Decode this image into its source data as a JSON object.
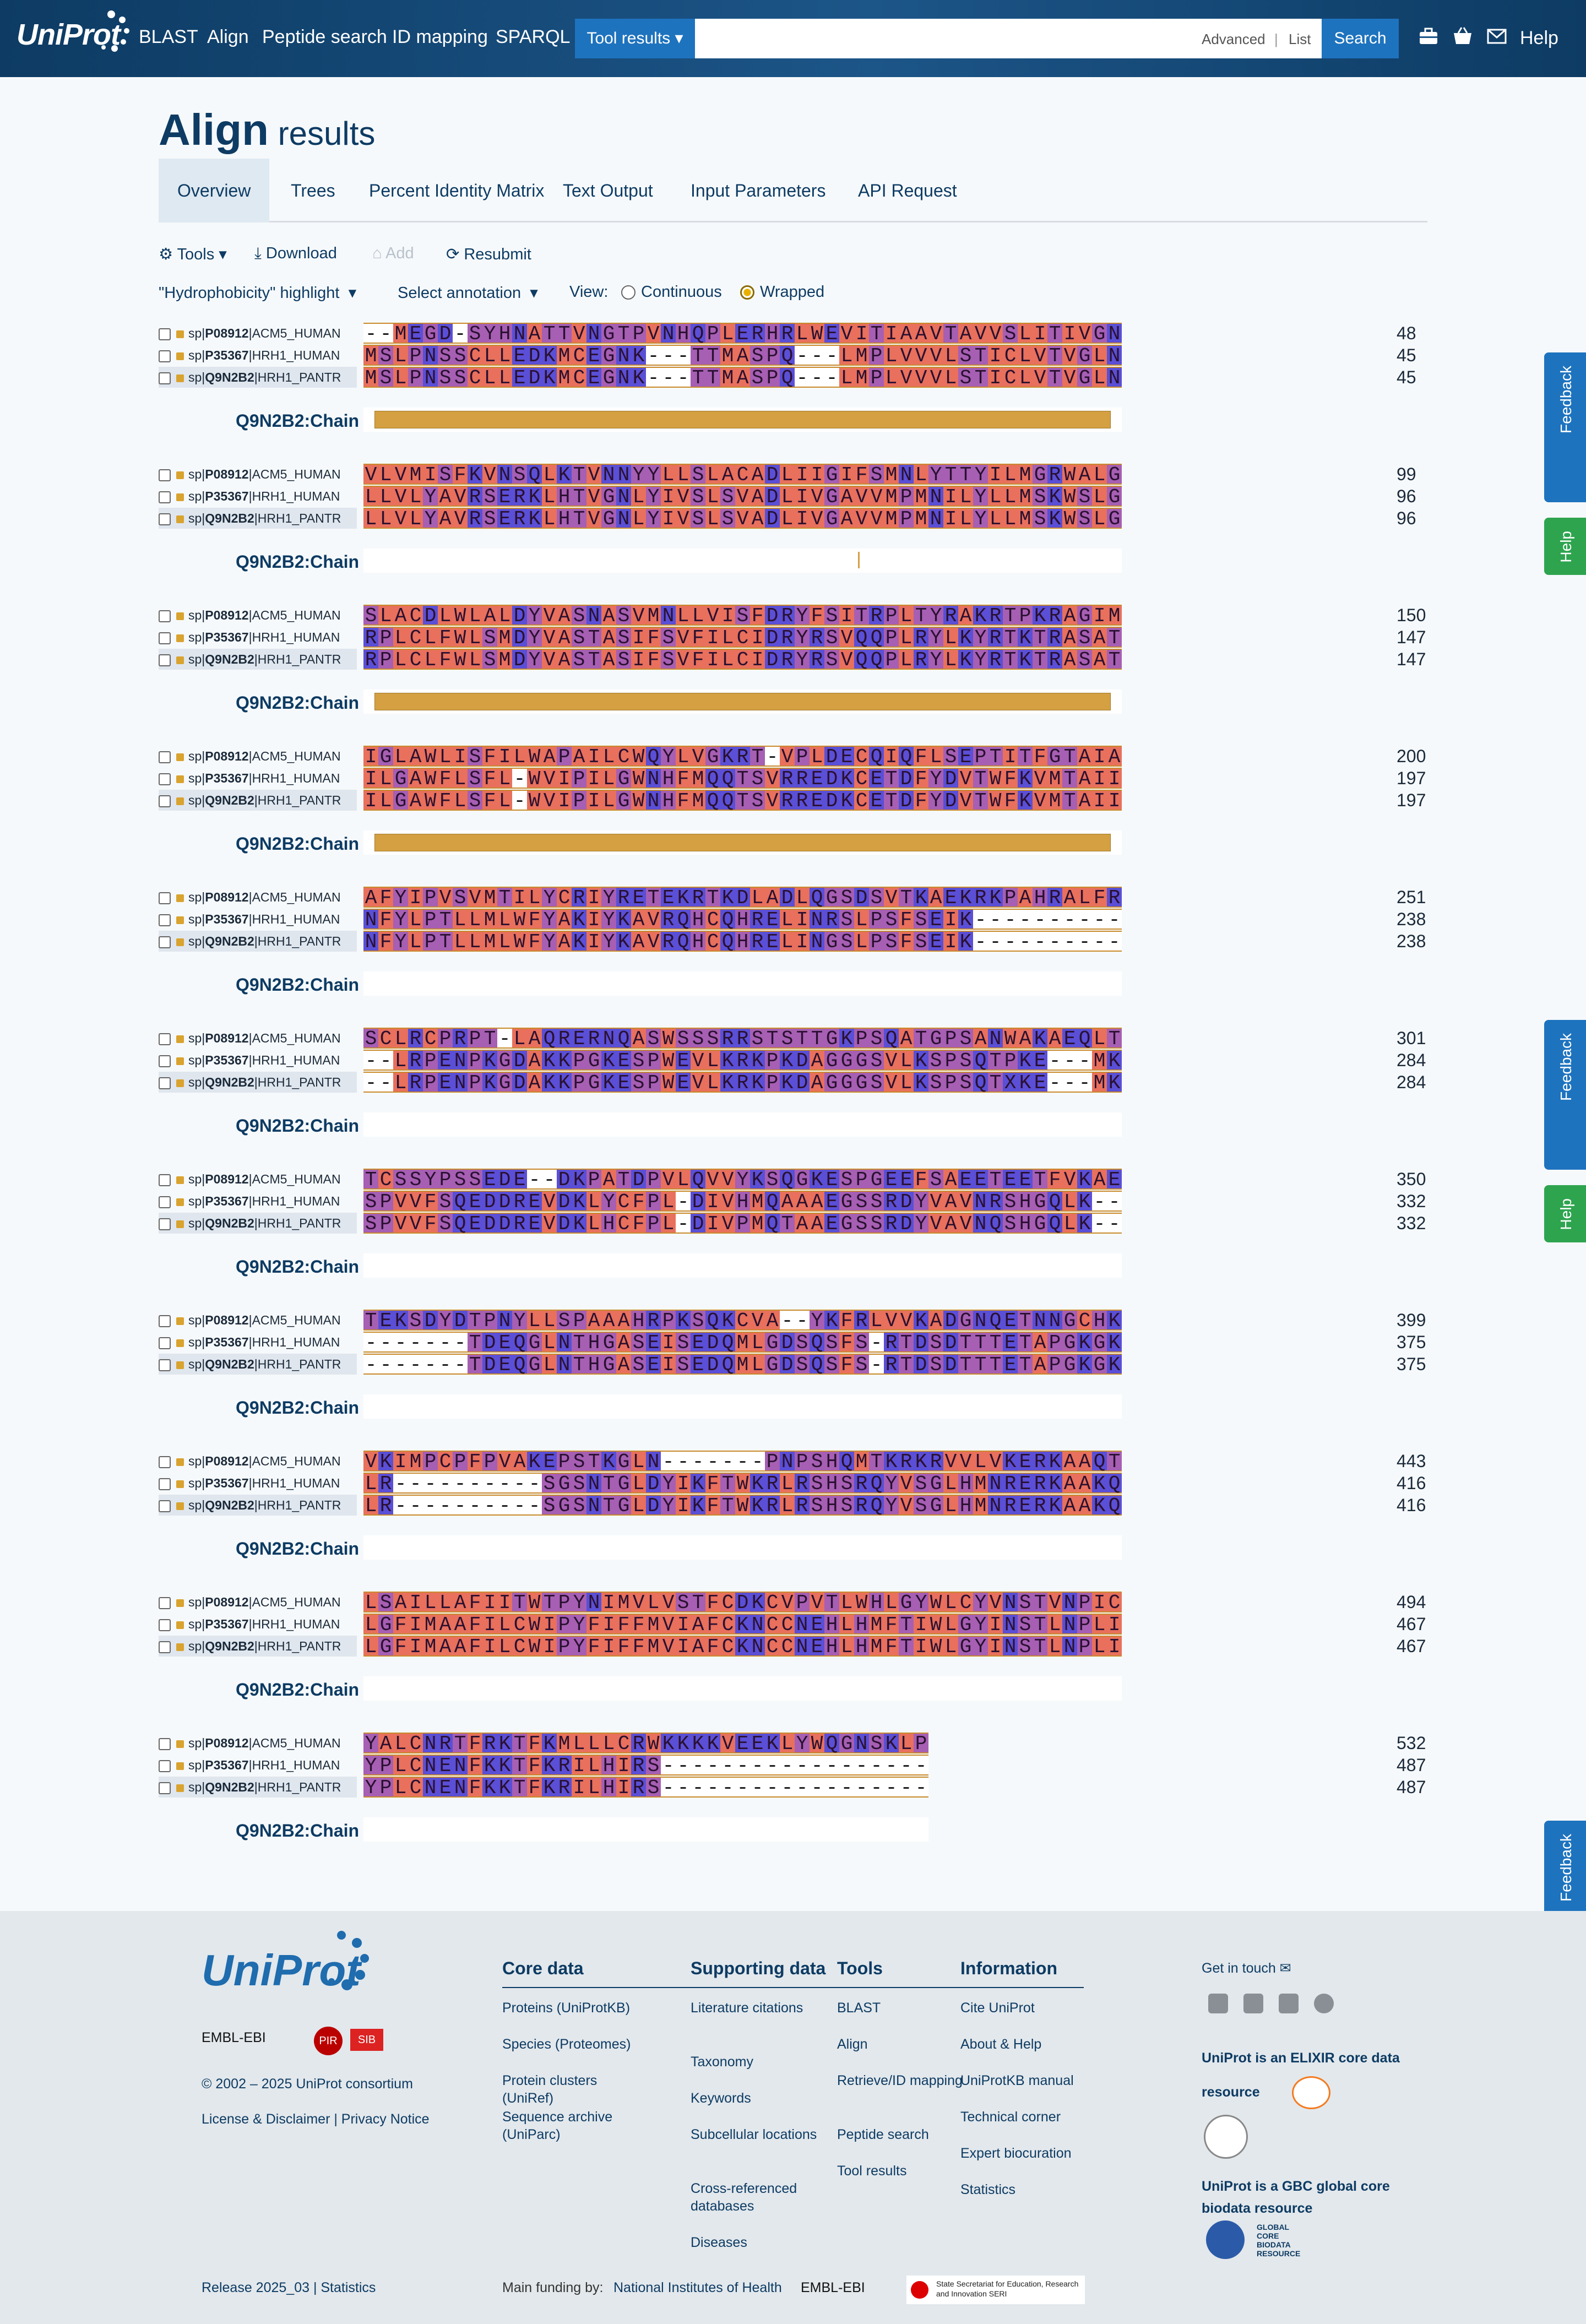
{
  "header": {
    "logo": "UniProt",
    "nav": [
      "BLAST",
      "Align",
      "Peptide search",
      "ID mapping",
      "SPARQL"
    ],
    "tool_results": "Tool results ▾",
    "search_placeholder": "",
    "advanced": "Advanced",
    "list": "List",
    "search": "Search",
    "help": "Help"
  },
  "page": {
    "title_bold": "Align",
    "title_rest": " results"
  },
  "tabs": [
    "Overview",
    "Trees",
    "Percent Identity Matrix",
    "Text Output",
    "Input Parameters",
    "API Request"
  ],
  "actions": {
    "tools": "Tools ▾",
    "download": "Download",
    "add": "Add",
    "resubmit": "Resubmit",
    "highlight": "\"Hydrophobicity\" highlight",
    "select_annotation": "Select annotation",
    "view": "View:",
    "continuous": "Continuous",
    "wrapped": "Wrapped"
  },
  "annotation_label": "Q9N2B2:Chain",
  "entries": [
    {
      "db": "sp|",
      "acc": "P08912",
      "name": "|ACM5_HUMAN"
    },
    {
      "db": "sp|",
      "acc": "P35367",
      "name": "|HRH1_HUMAN"
    },
    {
      "db": "sp|",
      "acc": "Q9N2B2",
      "name": "|HRH1_PANTR"
    }
  ],
  "alignment": [
    {
      "seqs": [
        "--MEGD-SYHNATTVNGTPVNHQPLERHRLWEVITIAAVTAVVSLITIVGN",
        "MSLPNSSCLLEDKMCEGNK---TTMASPQ---LMPLVVVLSTICLVTVGLN",
        "MSLPNSSCLLEDKMCEGNK---TTMASPQ---LMPLVVVLSTICLVTVGLN"
      ],
      "ends": [
        "48",
        "45",
        "45"
      ]
    },
    {
      "seqs": [
        "VLVMISFKVNSQLKTVNNYYLLSLACADLIIGIFSMNLYTTYILMGRWALG",
        "LLVLYAVRSERKLHTVGNLYIVSLSVADLIVGAVVMPMNILYLLMSKWSLG",
        "LLVLYAVRSERKLHTVGNLYIVSLSVADLIVGAVVMPMNILYLLMSKWSLG"
      ],
      "ends": [
        "99",
        "96",
        "96"
      ]
    },
    {
      "seqs": [
        "SLACDLWLALDYVASNASVMNLLVISFDRYFSITRPLTYRAKRTPKRAGIM",
        "RPLCLFWLSMDYVASTASIFSVFILCIDRYRSVQQPLRYLKYRTKTRASAT",
        "RPLCLFWLSMDYVASTASIFSVFILCIDRYRSVQQPLRYLKYRTKTRASAT"
      ],
      "ends": [
        "150",
        "147",
        "147"
      ]
    },
    {
      "seqs": [
        "IGLAWLISFILWAPAILCWQYLVGKRT-VPLDECQIQFLSEPTITFGTAIA",
        "ILGAWFLSFL-WVIPILGWNHFMQQTSVRREDKCETDFYDVTWFKVMTAII",
        "ILGAWFLSFL-WVIPILGWNHFMQQTSVRREDKCETDFYDVTWFKVMTAII"
      ],
      "ends": [
        "200",
        "197",
        "197"
      ]
    },
    {
      "seqs": [
        "AFYIPVSVMTILYCRIYRETEKRTKDLADLQGSDSVTKAEKRKPAHRALFR",
        "NFYLPTLLMLWFYAKIYKAVRQHCQHRELINRSLPSFSEIK----------",
        "NFYLPTLLMLWFYAKIYKAVRQHCQHRELINGSLPSFSEIK----------"
      ],
      "ends": [
        "251",
        "238",
        "238"
      ]
    },
    {
      "seqs": [
        "SCLRCPRPT-LAQRERNQASWSSSRRSTSTTGKPSQATGPSANWAKAEQLT",
        "--LRPENPKGDAKKPGKESPWEVLKRKPKDAGGGSVLKSPSQTPKE---MK",
        "--LRPENPKGDAKKPGKESPWEVLKRKPKDAGGGSVLKSPSQTXKE---MK"
      ],
      "ends": [
        "301",
        "284",
        "284"
      ]
    },
    {
      "seqs": [
        "TCSSYPSSEDE--DKPATDPVLQVVYKSQGKESPGEEFSAEETEETFVKAE",
        "SPVVFSQEDDREVDKLYCFPL-DIVHMQAAAEGSSRDYVAVNRSHGQLK--",
        "SPVVFSQEDDREVDKLHCFPL-DIVPMQTAAEGSSRDYVAVNQSHGQLK--"
      ],
      "ends": [
        "350",
        "332",
        "332"
      ]
    },
    {
      "seqs": [
        "TEKSDYDTPNYLLSPAAAHRPKSQKCVA--YKFRLVVKADGNQETNNGCHK",
        "-------TDEQGLNTHGASEISEDQMLGDSQSFS-RTDSDTTTETAPGKGK",
        "-------TDEQGLNTHGASEISEDQMLGDSQSFS-RTDSDTTTETAPGKGK"
      ],
      "ends": [
        "399",
        "375",
        "375"
      ]
    },
    {
      "seqs": [
        "VKIMPCPFPVAKEPSTKGLN-------PNPSHQMTKRKRVVLVKERKAAQT",
        "LR----------SGSNTGLDYIKFTWKRLRSHSRQYVSGLHMNRERKAAKQ",
        "LR----------SGSNTGLDYIKFTWKRLRSHSRQYVSGLHMNRERKAAKQ"
      ],
      "ends": [
        "443",
        "416",
        "416"
      ]
    },
    {
      "seqs": [
        "LSAILLAFIITWTPYNIMVLVSTFCDKCVPVTLWHLGYWLCYVNSTVNPIC",
        "LGFIMAAFILCWIPYFIFFMVIAFCKNCCNEHLHMFTIWLGYINSTLNPLI",
        "LGFIMAAFILCWIPYFIFFMVIAFCKNCCNEHLHMFTIWLGYINSTLNPLI"
      ],
      "ends": [
        "494",
        "467",
        "467"
      ]
    },
    {
      "seqs": [
        "YALCNRTFRKTFKMLLLCRWKKKKVEEKLYWQGNSKLP",
        "YPLCNENFKKTFKRILHIRS------------------",
        "YPLCNENFKKTFKRILHIRS------------------"
      ],
      "ends": [
        "532",
        "487",
        "487"
      ]
    }
  ],
  "annotation_present": [
    true,
    false,
    true,
    true,
    false,
    false,
    false,
    false,
    false,
    false,
    false
  ],
  "hydro_colors": {
    "hydrophobic": "#e8705c",
    "hydrophilic": "#5a4fd6",
    "intermediate": "#a65fb3",
    "gap": "#ffffff"
  },
  "feedback": "Feedback",
  "help_side": "Help",
  "footer": {
    "logo": "UniProt",
    "partners": [
      "EMBL-EBI",
      "PIR",
      "SIB"
    ],
    "copyright": "© 2002 – 2025 UniProt consortium",
    "license": "License & Disclaimer | Privacy Notice",
    "release": "Release 2025_03 | Statistics",
    "cols": [
      {
        "title": "Core data",
        "links": [
          "Proteins (UniProtKB)",
          "Species (Proteomes)",
          "Protein clusters (UniRef)",
          "Sequence archive (UniParc)"
        ]
      },
      {
        "title": "Supporting data",
        "links": [
          "Literature citations",
          "Taxonomy",
          "Keywords",
          "Subcellular locations",
          "Cross-referenced databases",
          "Diseases"
        ]
      },
      {
        "title": "Tools",
        "links": [
          "BLAST",
          "Align",
          "Retrieve/ID mapping",
          "Peptide search",
          "Tool results"
        ]
      },
      {
        "title": "Information",
        "links": [
          "Cite UniProt",
          "About & Help",
          "UniProtKB manual",
          "Technical corner",
          "Expert biocuration",
          "Statistics"
        ]
      }
    ],
    "get_in_touch": "Get in touch",
    "elixir": "UniProt is an ELIXIR core data resource",
    "gbc": "UniProt is a GBC global core biodata resource",
    "gbc_logo": "GLOBAL CORE BIODATA RESOURCE",
    "funding_label": "Main funding by:",
    "funding_nih": "National Institutes of Health",
    "funding_ebi": "EMBL-EBI",
    "funding_seri": "State Secretariat for Education, Research and Innovation SERI"
  }
}
